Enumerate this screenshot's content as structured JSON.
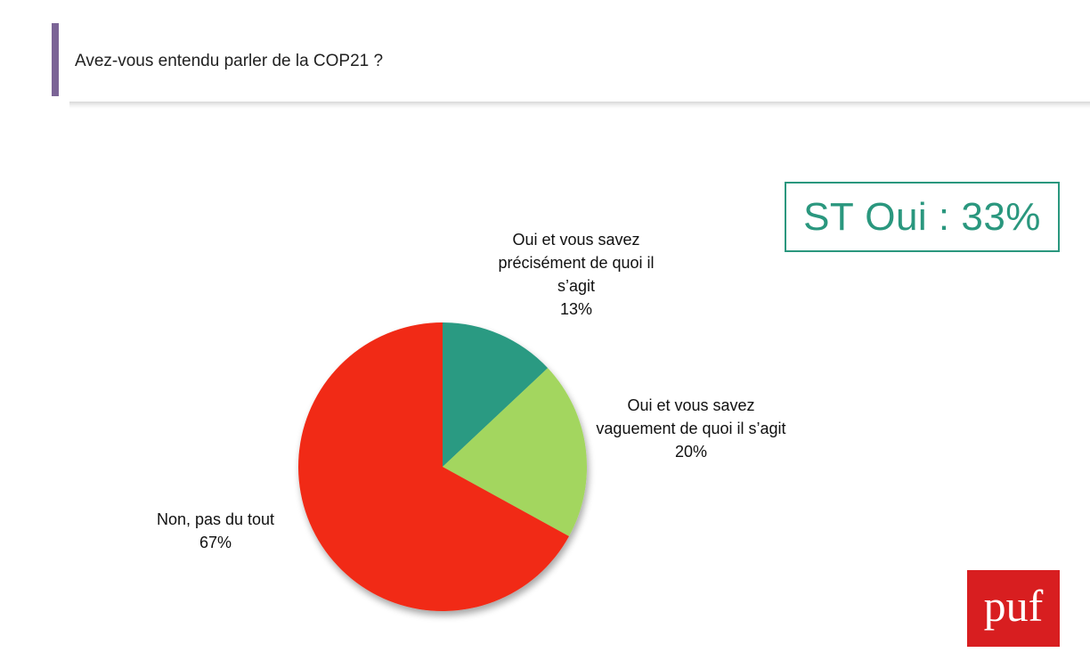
{
  "header": {
    "title": "Avez-vous entendu parler de la COP21 ?"
  },
  "summary_box": {
    "text": "ST Oui : 33%",
    "color": "#2a977e"
  },
  "logo": {
    "text": "puf",
    "color": "#d81e20"
  },
  "chart_data": {
    "type": "pie",
    "title": "Avez-vous entendu parler de la COP21 ?",
    "slices": [
      {
        "label": "Oui et vous savez précisément de quoi il s’agit",
        "value": 13,
        "value_label": "13%",
        "color": "#2a9a82"
      },
      {
        "label": "Oui et vous savez vaguement de quoi il s’agit",
        "value": 20,
        "value_label": "20%",
        "color": "#a3d65e"
      },
      {
        "label": "Non, pas du tout",
        "value": 67,
        "value_label": "67%",
        "color": "#f12a14"
      }
    ],
    "start_angle": "top",
    "direction": "clockwise"
  }
}
